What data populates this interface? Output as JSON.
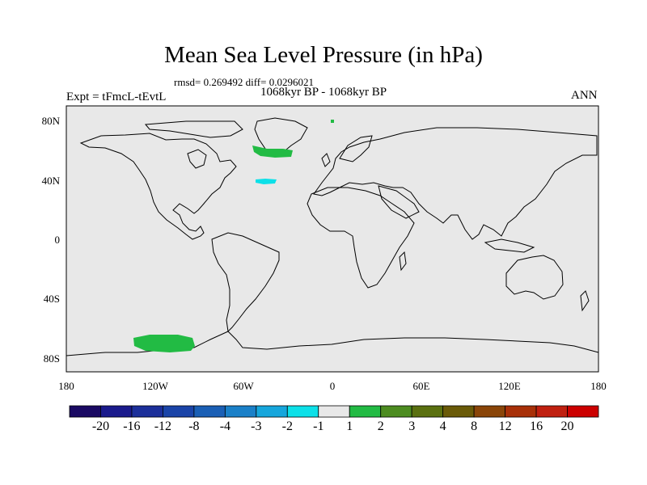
{
  "title": "Mean Sea Level Pressure (in hPa)",
  "stats": "rmsd= 0.269492 diff= 0.0296021",
  "period": "1068kyr BP - 1068kyr BP",
  "experiment": "Expt = tFmcL-tEvtL",
  "season": "ANN",
  "lat_ticks": [
    "80N",
    "40N",
    "0",
    "40S",
    "80S"
  ],
  "lon_ticks": [
    "180",
    "120W",
    "60W",
    "0",
    "60E",
    "120E",
    "180"
  ],
  "colorbar": {
    "labels": [
      "-20",
      "-16",
      "-12",
      "-8",
      "-4",
      "-3",
      "-2",
      "-1",
      "1",
      "2",
      "3",
      "4",
      "8",
      "12",
      "16",
      "20"
    ],
    "colors": [
      "#1a0a63",
      "#1a1a8c",
      "#1c2f9a",
      "#1a44a8",
      "#1a5fb5",
      "#1a80c8",
      "#16a6dc",
      "#0de0e8",
      "#e8e8e8",
      "#22bb44",
      "#4c8c20",
      "#5a7010",
      "#6a5a08",
      "#8a4508",
      "#a83008",
      "#c02010",
      "#cc0000"
    ]
  },
  "colors": {
    "map_background": "#e8e8e8",
    "positive_anomaly": "#22bb44",
    "negative_anomaly": "#0de0e8"
  }
}
